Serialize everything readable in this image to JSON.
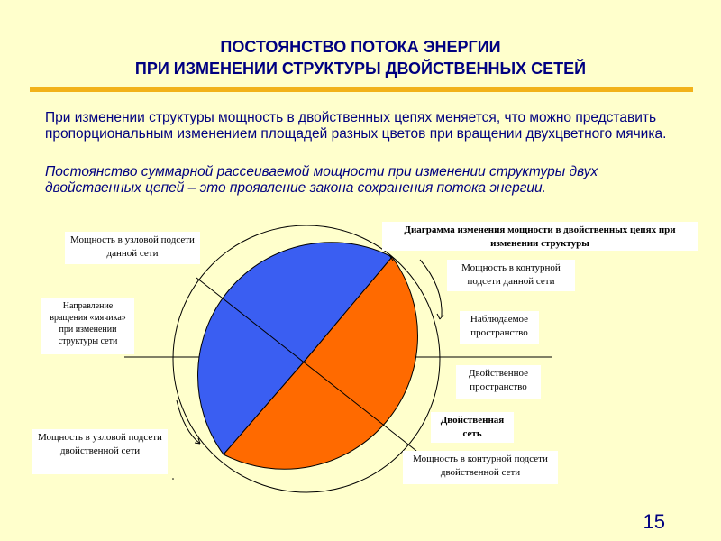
{
  "title": {
    "line1": "ПОСТОЯНСТВО ПОТОКА ЭНЕРГИИ",
    "line2": "ПРИ ИЗМЕНЕНИИ СТРУКТУРЫ ДВОЙСТВЕННЫХ СЕТЕЙ"
  },
  "paragraph1": "При изменении структуры мощность в двойственных цепях меняется, что можно представить пропорциональным изменением площадей разных цветов при вращении двухцветного мячика.",
  "paragraph2": "Постоянство суммарной рассеиваемой мощности при изменении структуры двух двойственных цепей – это проявление закона сохранения потока энергии.",
  "diagram": {
    "caption": "Диаграмма изменения мощности в двойственных цепях при изменении структуры",
    "labels": {
      "node_power_given": "Мощность в узловой подсети данной сети",
      "contour_power_given": "Мощность в контурной подсети данной сети",
      "rotation_direction": "Направление вращения «мячика» при изменении структуры сети",
      "observable_space": "Наблюдаемое пространство",
      "dual_space": "Двойственное пространство",
      "dual_network": "Двойственная сеть",
      "node_power_dual": "Мощность в узловой подсети двойственной сети",
      "contour_power_dual": "Мощность в контурной подсети двойственной сети"
    },
    "colors": {
      "blue_sector": "#3a5ef2",
      "orange_sector": "#ff6a00",
      "background": "#ffffcc"
    }
  },
  "page_number": "15"
}
